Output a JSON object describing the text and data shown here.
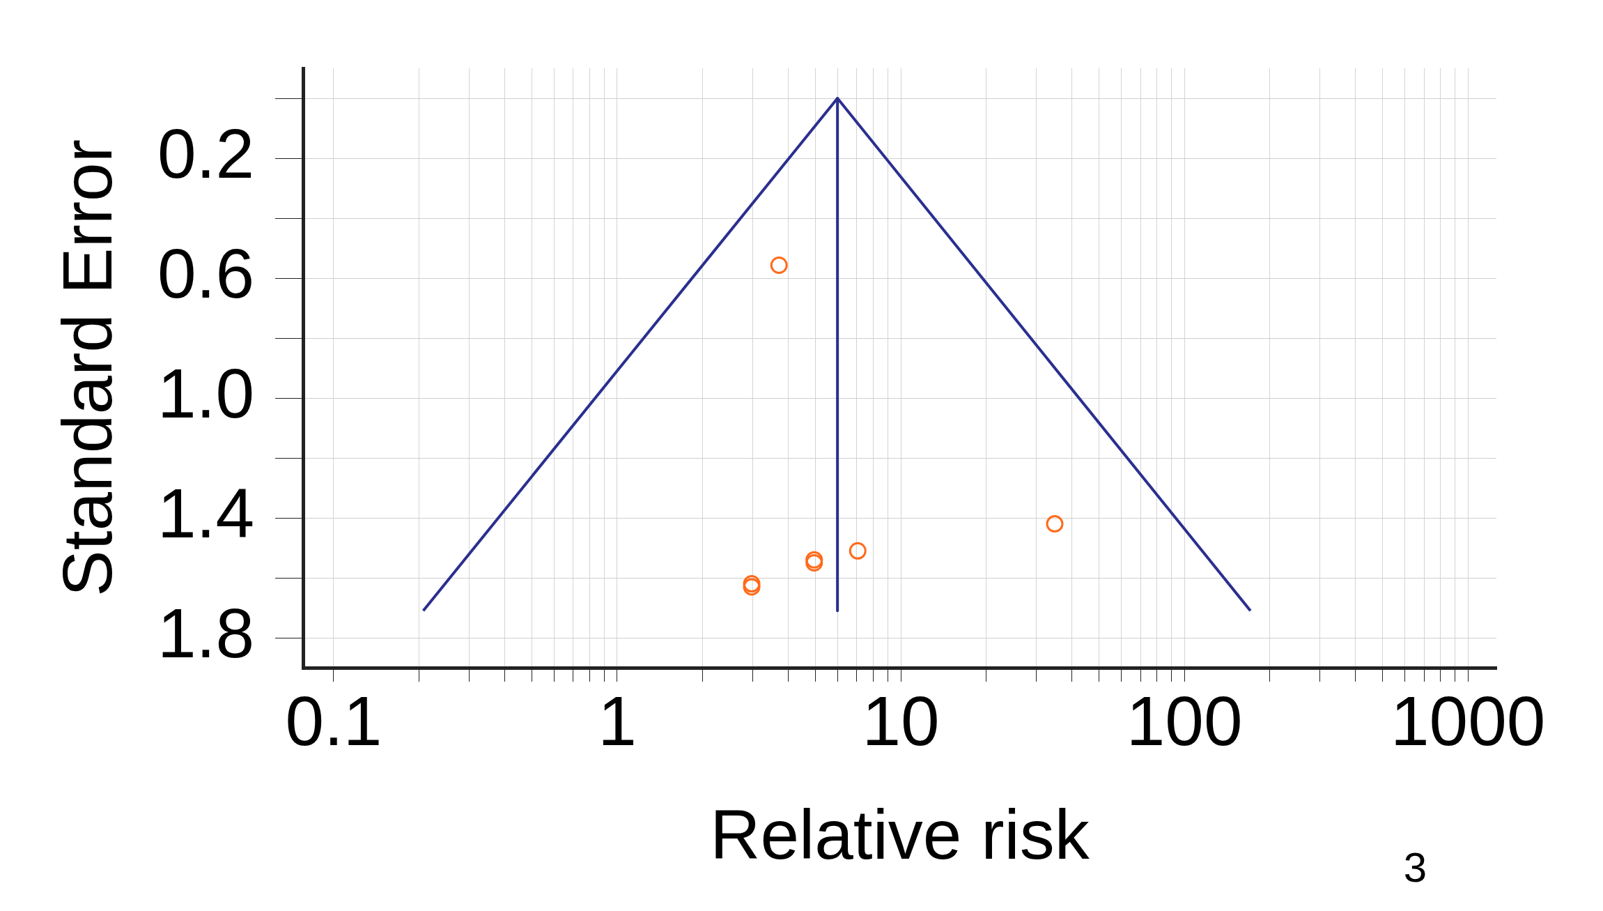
{
  "chart_data": {
    "type": "scatter",
    "xlabel": "Relative risk",
    "ylabel": "Standard Error",
    "log": "x",
    "grid": true,
    "legend": false,
    "xlim": [
      0.078,
      1260
    ],
    "ylim": [
      1.9,
      -0.1
    ],
    "xticks": [
      0.1,
      {
        "value": 0.2,
        "label": null
      },
      {
        "value": 0.3,
        "label": null
      },
      {
        "value": 0.4,
        "label": null
      },
      {
        "value": 0.5,
        "label": null
      },
      {
        "value": 0.6,
        "label": null
      },
      {
        "value": 0.7,
        "label": null
      },
      {
        "value": 0.8,
        "label": null
      },
      {
        "value": 0.9,
        "label": null
      },
      1,
      {
        "value": 2,
        "label": null
      },
      {
        "value": 3,
        "label": null
      },
      {
        "value": 4,
        "label": null
      },
      {
        "value": 5,
        "label": null
      },
      {
        "value": 6,
        "label": null
      },
      {
        "value": 7,
        "label": null
      },
      {
        "value": 8,
        "label": null
      },
      {
        "value": 9,
        "label": null
      },
      10,
      {
        "value": 20,
        "label": null
      },
      {
        "value": 30,
        "label": null
      },
      {
        "value": 40,
        "label": null
      },
      {
        "value": 50,
        "label": null
      },
      {
        "value": 60,
        "label": null
      },
      {
        "value": 70,
        "label": null
      },
      {
        "value": 80,
        "label": null
      },
      {
        "value": 90,
        "label": null
      },
      100,
      {
        "value": 200,
        "label": null
      },
      {
        "value": 300,
        "label": null
      },
      {
        "value": 400,
        "label": null
      },
      {
        "value": 500,
        "label": null
      },
      {
        "value": 600,
        "label": null
      },
      {
        "value": 700,
        "label": null
      },
      {
        "value": 800,
        "label": null
      },
      {
        "value": 900,
        "label": null
      },
      1000
    ],
    "yticks": [
      {
        "value": 0,
        "label": null
      },
      0.2,
      {
        "value": 0.4,
        "label": null
      },
      0.6,
      {
        "value": 0.8,
        "label": null
      },
      {
        "value": 1.0,
        "label": "1.0"
      },
      {
        "value": 1.2,
        "label": null
      },
      1.4,
      {
        "value": 1.6,
        "label": null
      },
      1.8
    ],
    "series": [
      {
        "type": "line",
        "color": "#2b2f8f",
        "marker": "none",
        "x": [
          0.207,
          5.98,
          171
        ],
        "values": [
          1.71,
          0,
          1.71
        ]
      },
      {
        "type": "line",
        "color": "#2b2f8f",
        "marker": "none",
        "x": [
          5.98,
          5.98
        ],
        "values": [
          0,
          1.71
        ]
      },
      {
        "type": "scatter",
        "color": "#ff6a1a",
        "marker": "circle",
        "x": [
          3.72,
          34.9,
          7.05,
          4.95,
          4.95,
          2.98,
          2.98
        ],
        "values": [
          0.557,
          1.42,
          1.51,
          1.54,
          1.55,
          1.62,
          1.63
        ]
      }
    ],
    "annotations": [
      "3"
    ]
  }
}
